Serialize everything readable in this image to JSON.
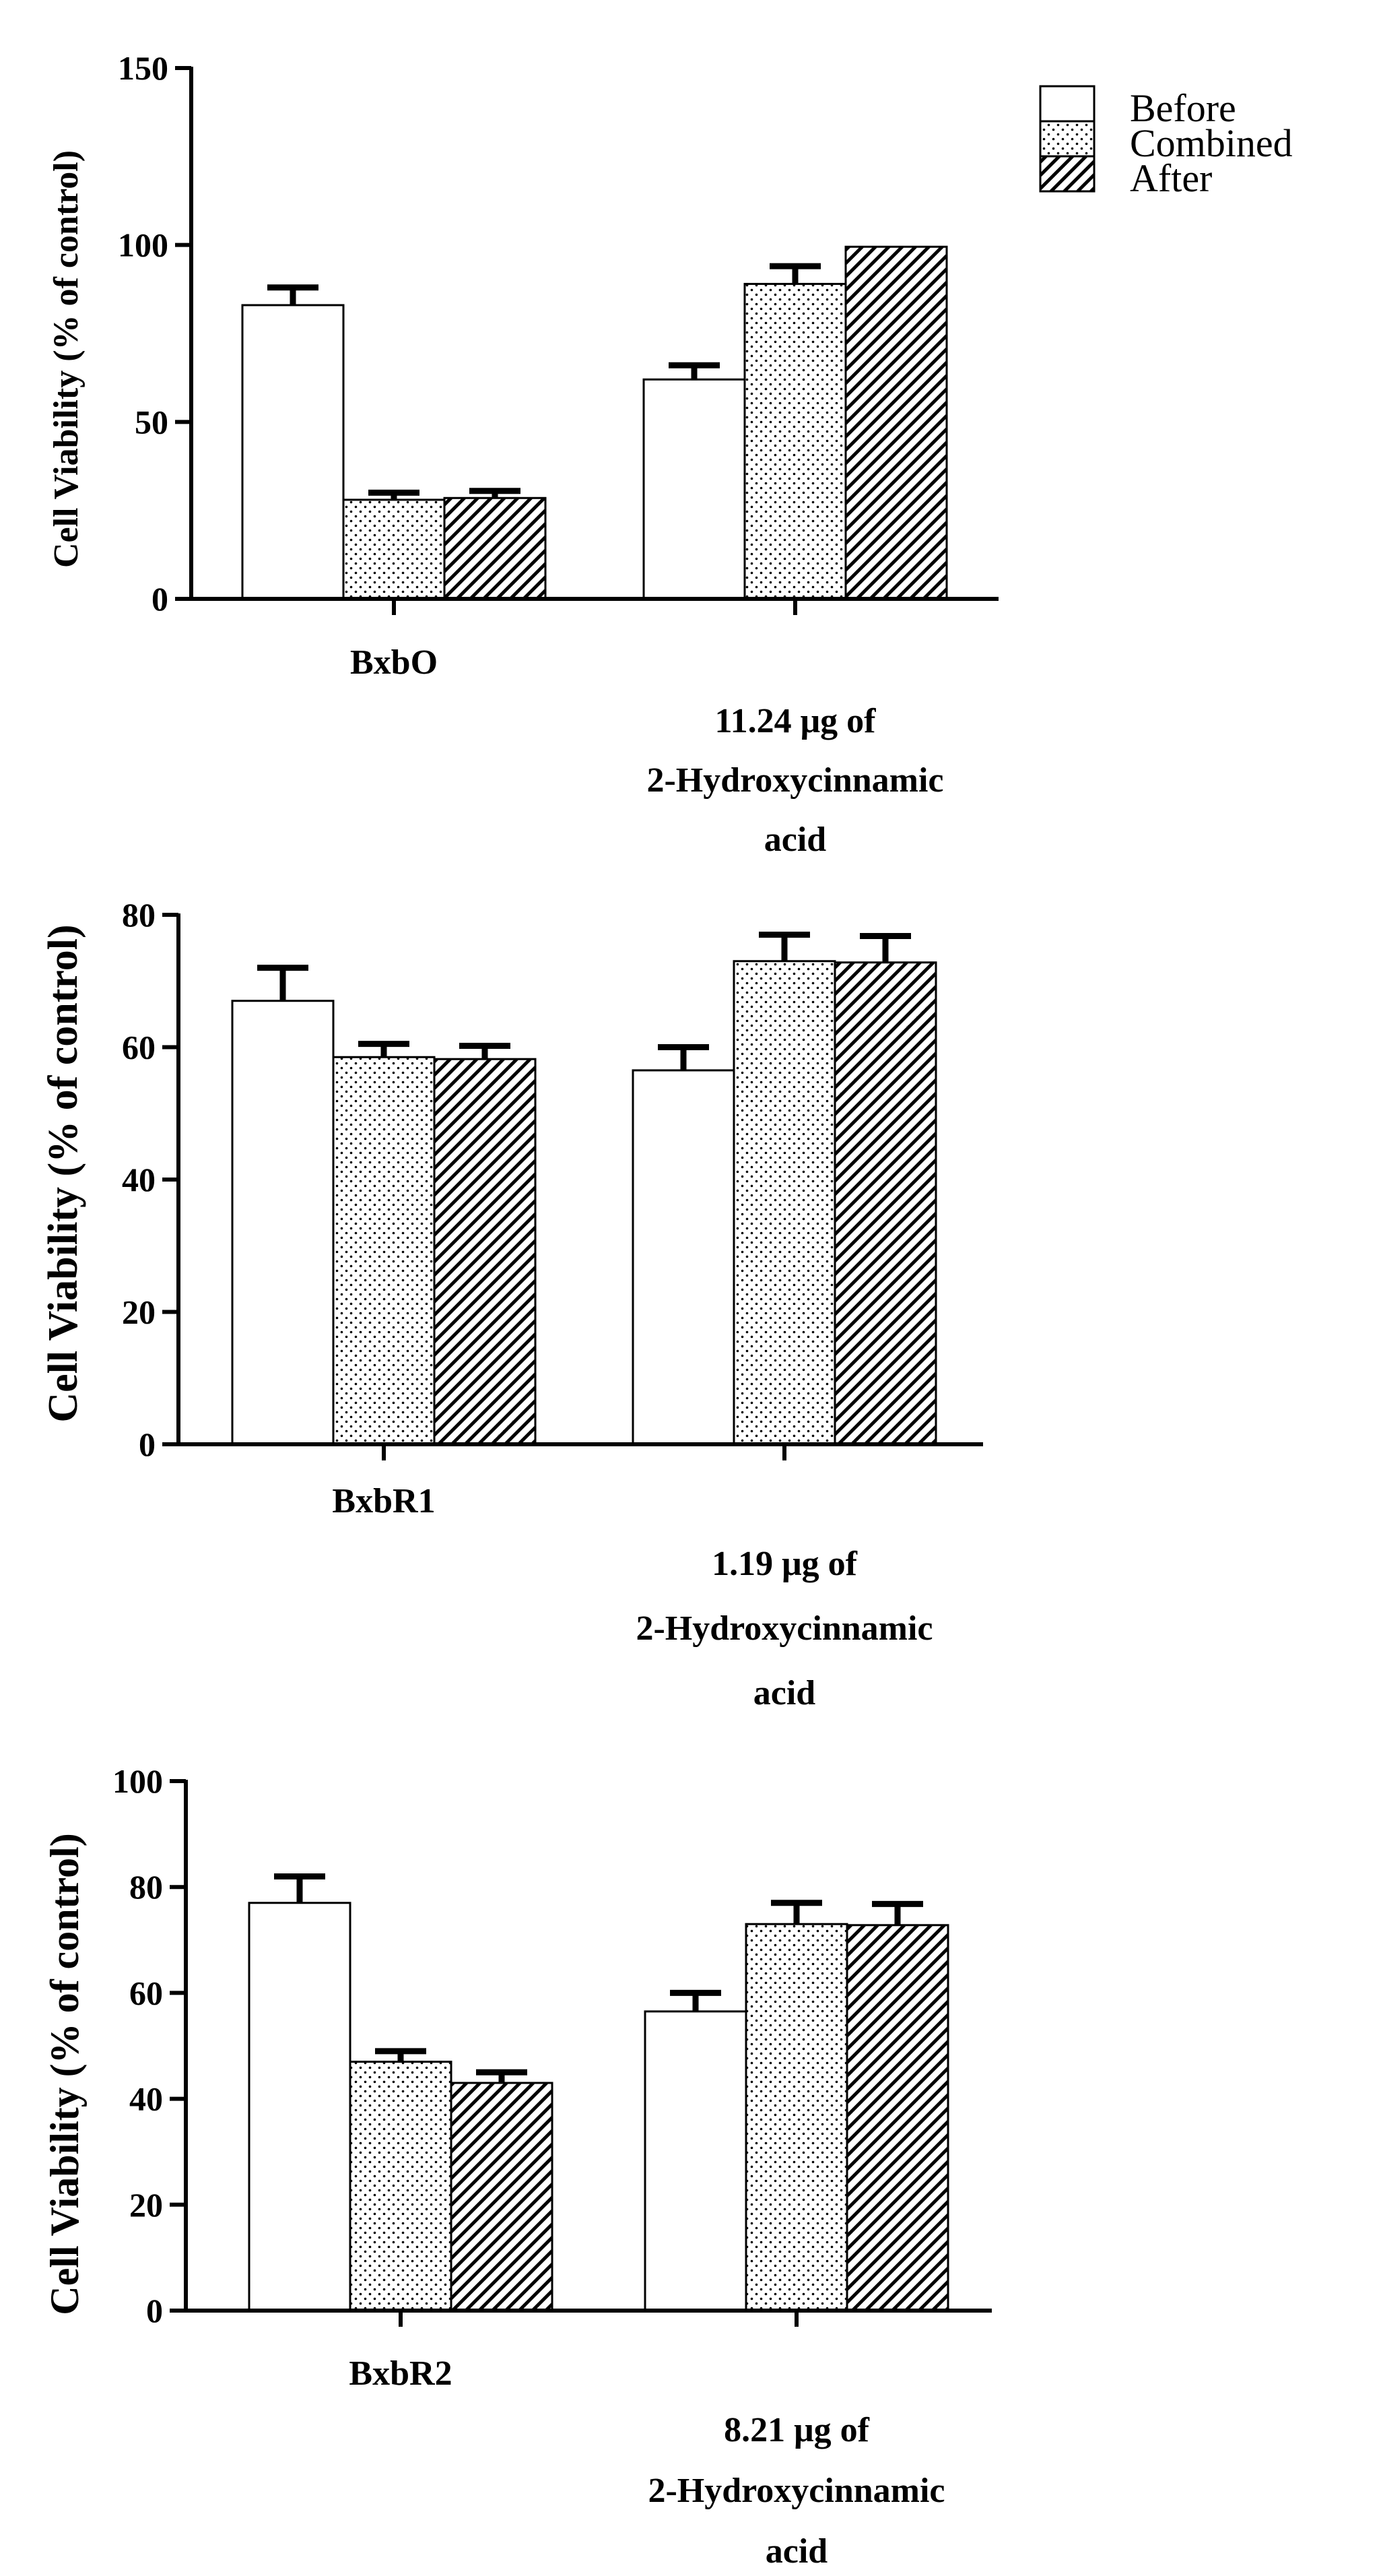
{
  "legend": {
    "entries": [
      {
        "label": "Before",
        "pattern": "open"
      },
      {
        "label": "Combined",
        "pattern": "dots"
      },
      {
        "label": "After",
        "pattern": "hatch"
      }
    ]
  },
  "chart_data": [
    {
      "type": "bar",
      "ylabel": "Cell Viability (% of control)",
      "ylim": [
        0,
        150
      ],
      "yticks": [
        0,
        50,
        100,
        150
      ],
      "categories": [
        {
          "label": "BxbO",
          "lines": [
            "BxbO"
          ]
        },
        {
          "label": "11.24 μg of 2-Hydroxycinnamic acid",
          "lines": [
            "11.24 μg of",
            "2-Hydroxycinnamic",
            "acid"
          ]
        }
      ],
      "series": [
        {
          "name": "Before",
          "values": [
            83,
            62
          ],
          "errors": [
            5,
            4
          ]
        },
        {
          "name": "Combined",
          "values": [
            28,
            89
          ],
          "errors": [
            2,
            5
          ]
        },
        {
          "name": "After",
          "values": [
            28.5,
            99.5
          ],
          "errors": [
            2,
            0
          ]
        }
      ]
    },
    {
      "type": "bar",
      "ylabel": "Cell Viability (% of control)",
      "ylim": [
        0,
        80
      ],
      "yticks": [
        0,
        20,
        40,
        60,
        80
      ],
      "categories": [
        {
          "label": "BxbR1",
          "lines": [
            "BxbR1"
          ]
        },
        {
          "label": "1.19 μg of 2-Hydroxycinnamic acid",
          "lines": [
            "1.19 μg of",
            "2-Hydroxycinnamic",
            "acid"
          ]
        }
      ],
      "series": [
        {
          "name": "Before",
          "values": [
            67,
            56.5
          ],
          "errors": [
            5,
            3.5
          ]
        },
        {
          "name": "Combined",
          "values": [
            58.5,
            73
          ],
          "errors": [
            2,
            4
          ]
        },
        {
          "name": "After",
          "values": [
            58.2,
            72.8
          ],
          "errors": [
            2,
            4
          ]
        }
      ]
    },
    {
      "type": "bar",
      "ylabel": "Cell Viability (% of control)",
      "ylim": [
        0,
        100
      ],
      "yticks": [
        0,
        20,
        40,
        60,
        80,
        100
      ],
      "categories": [
        {
          "label": "BxbR2",
          "lines": [
            "BxbR2"
          ]
        },
        {
          "label": "8.21 μg of 2-Hydroxycinnamic acid",
          "lines": [
            "8.21 μg of",
            "2-Hydroxycinnamic",
            "acid"
          ]
        }
      ],
      "series": [
        {
          "name": "Before",
          "values": [
            77,
            56.5
          ],
          "errors": [
            5,
            3.5
          ]
        },
        {
          "name": "Combined",
          "values": [
            47,
            73
          ],
          "errors": [
            2,
            4
          ]
        },
        {
          "name": "After",
          "values": [
            43,
            72.8
          ],
          "errors": [
            2,
            4
          ]
        }
      ]
    }
  ]
}
